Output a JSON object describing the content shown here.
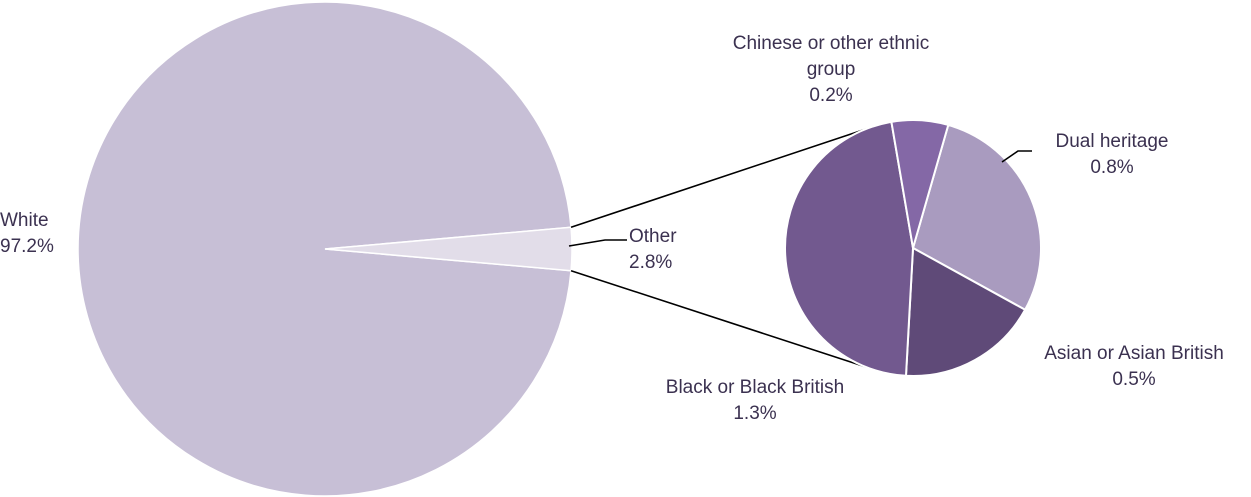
{
  "chart_data": {
    "type": "pie",
    "subtype": "pie-of-pie",
    "main": {
      "slices": [
        {
          "label": "White",
          "value": 97.2,
          "value_label": "97.2%",
          "color": "#c7bfd6"
        },
        {
          "label": "Other",
          "value": 2.8,
          "value_label": "2.8%",
          "color": "#e2dde9"
        }
      ]
    },
    "secondary": {
      "of": "Other",
      "slices": [
        {
          "label": "Dual heritage",
          "value": 0.8,
          "value_label": "0.8%",
          "color": "#a99bbf"
        },
        {
          "label": "Asian or Asian British",
          "value": 0.5,
          "value_label": "0.5%",
          "color": "#5f4a78"
        },
        {
          "label": "Black or Black British",
          "value": 1.3,
          "value_label": "1.3%",
          "color": "#72598f"
        },
        {
          "label": "Chinese or other ethnic group",
          "value": 0.2,
          "value_label": "0.2%",
          "color": "#8468a6"
        }
      ]
    },
    "title": "",
    "legend": "none",
    "label_text_color": "#3b3150",
    "line_color": "#000000"
  }
}
